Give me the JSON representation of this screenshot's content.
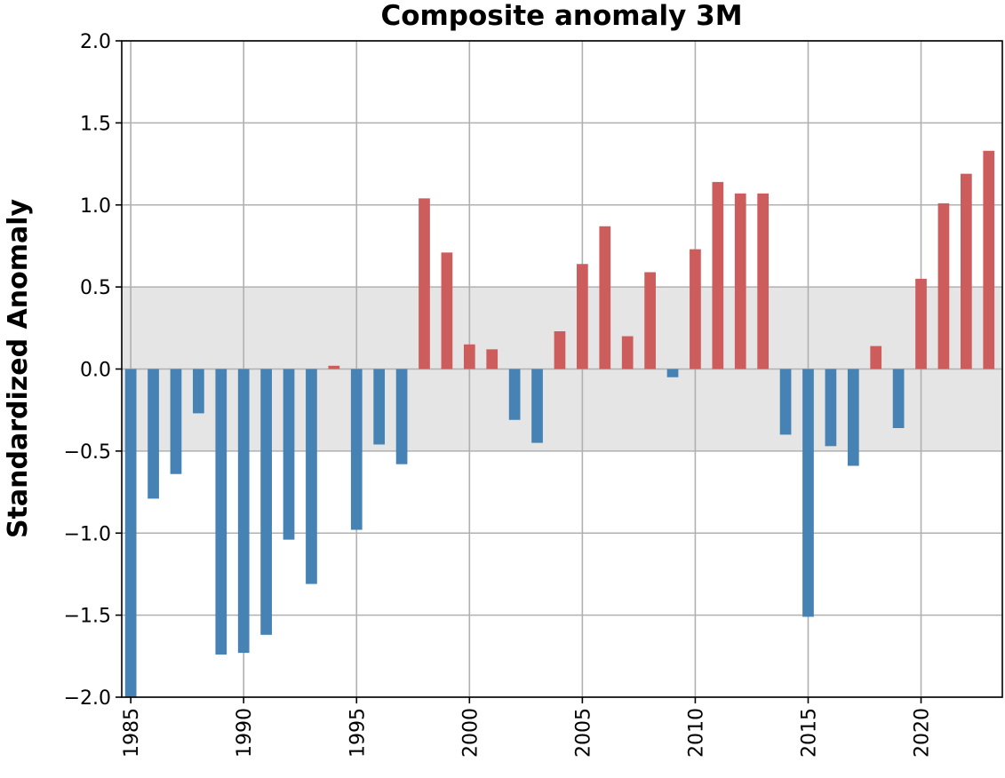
{
  "chart_data": {
    "type": "bar",
    "title": "Composite anomaly 3M",
    "xlabel": "",
    "ylabel": "Standardized Anomaly",
    "x": [
      1985,
      1986,
      1987,
      1988,
      1989,
      1990,
      1991,
      1992,
      1993,
      1994,
      1995,
      1996,
      1997,
      1998,
      1999,
      2000,
      2001,
      2002,
      2003,
      2004,
      2005,
      2006,
      2007,
      2008,
      2009,
      2010,
      2011,
      2012,
      2013,
      2014,
      2015,
      2016,
      2017,
      2018,
      2019,
      2020,
      2021,
      2022,
      2023
    ],
    "values": [
      -2.0,
      -0.79,
      -0.64,
      -0.27,
      -1.74,
      -1.73,
      -1.62,
      -1.04,
      -1.31,
      0.02,
      -0.98,
      -0.46,
      -0.58,
      1.04,
      0.71,
      0.15,
      0.12,
      -0.31,
      -0.45,
      0.23,
      0.64,
      0.87,
      0.2,
      0.59,
      -0.05,
      0.73,
      1.14,
      1.07,
      1.07,
      -0.4,
      -1.51,
      -0.47,
      -0.59,
      0.14,
      -0.36,
      0.55,
      1.01,
      1.19,
      1.33
    ],
    "xlim": [
      1984.6,
      2023.6
    ],
    "ylim": [
      -2.0,
      2.0
    ],
    "xticks": [
      1985,
      1990,
      1995,
      2000,
      2005,
      2010,
      2015,
      2020
    ],
    "yticks": [
      -2.0,
      -1.5,
      -1.0,
      -0.5,
      0.0,
      0.5,
      1.0,
      1.5,
      2.0
    ],
    "ytick_labels": [
      "−2.0",
      "−1.5",
      "−1.0",
      "−0.5",
      "0.0",
      "0.5",
      "1.0",
      "1.5",
      "2.0"
    ],
    "shaded_band": [
      -0.5,
      0.5
    ],
    "grid": true,
    "bar_width_years": 0.5,
    "colors": {
      "positive": "#cd5c5c",
      "negative": "#4682b4",
      "band": "#e5e5e5",
      "grid": "#b0b0b0"
    }
  }
}
